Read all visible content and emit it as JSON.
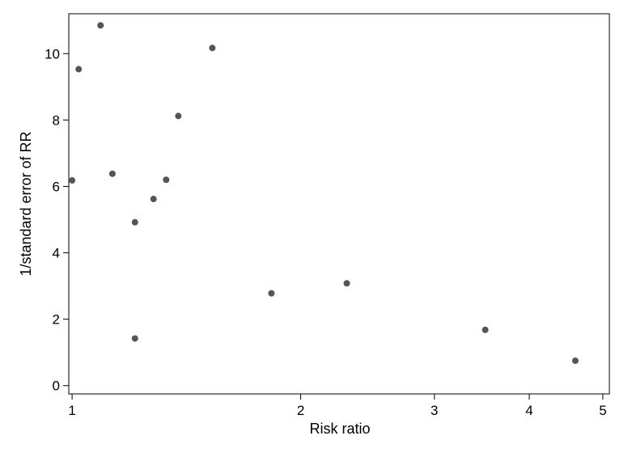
{
  "chart_data": {
    "type": "scatter",
    "title": "",
    "xlabel": "Risk ratio",
    "ylabel": "1/standard error of RR",
    "x_scale": "log",
    "xlim": [
      0.99,
      5.1
    ],
    "ylim": [
      -0.25,
      11.2
    ],
    "x_ticks": [
      1,
      2,
      3,
      4,
      5
    ],
    "y_ticks": [
      0,
      2,
      4,
      6,
      8,
      10
    ],
    "grid": false,
    "point_color": "#555555",
    "points": [
      {
        "x": 1.0,
        "y": 6.18
      },
      {
        "x": 1.02,
        "y": 9.53
      },
      {
        "x": 1.09,
        "y": 10.85
      },
      {
        "x": 1.13,
        "y": 6.38
      },
      {
        "x": 1.21,
        "y": 4.92
      },
      {
        "x": 1.21,
        "y": 1.42
      },
      {
        "x": 1.28,
        "y": 5.62
      },
      {
        "x": 1.33,
        "y": 6.2
      },
      {
        "x": 1.38,
        "y": 8.12
      },
      {
        "x": 1.53,
        "y": 10.17
      },
      {
        "x": 1.83,
        "y": 2.78
      },
      {
        "x": 2.3,
        "y": 3.08
      },
      {
        "x": 3.5,
        "y": 1.68
      },
      {
        "x": 4.6,
        "y": 0.75
      }
    ]
  }
}
